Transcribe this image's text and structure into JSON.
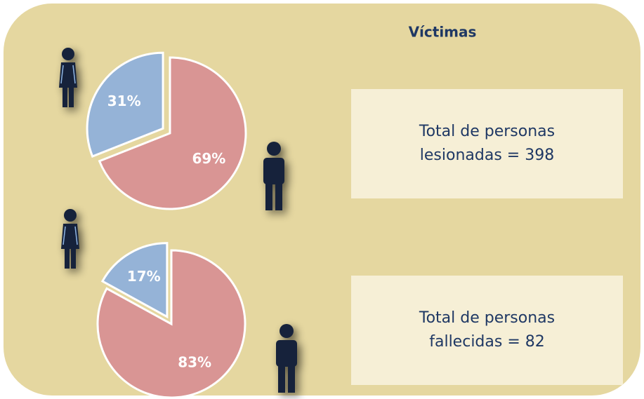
{
  "title": "Víctimas",
  "chart_data": [
    {
      "type": "pie",
      "values": [
        31,
        69
      ],
      "value_labels": [
        "31%",
        "69%"
      ],
      "colors": [
        "#95b3d7",
        "#d99594"
      ],
      "annotation": "Total de personas lesionadas = 398"
    },
    {
      "type": "pie",
      "values": [
        17,
        83
      ],
      "value_labels": [
        "17%",
        "83%"
      ],
      "colors": [
        "#95b3d7",
        "#d99594"
      ],
      "annotation": "Total de personas fallecidas = 82"
    }
  ]
}
